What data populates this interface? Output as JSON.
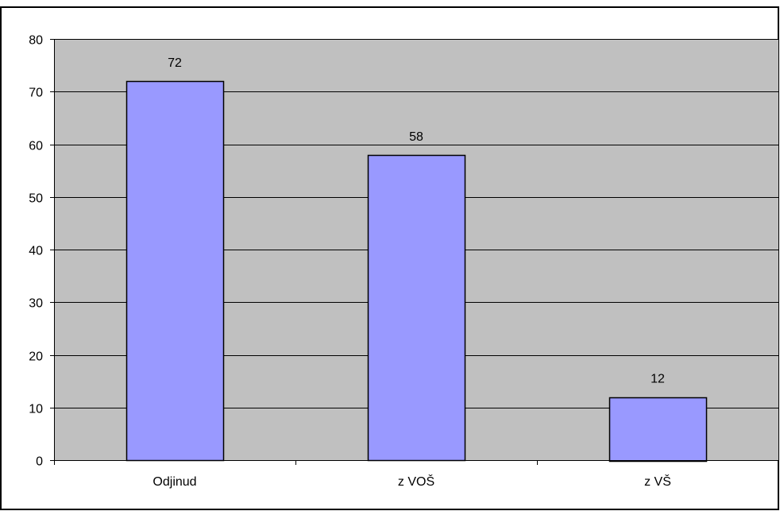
{
  "colors": {
    "plot_background": "#c0c0c0",
    "bar_fill": "#9999ff",
    "bar_stroke": "#000000",
    "gridline": "#000000",
    "frame": "#000000"
  },
  "chart_data": {
    "type": "bar",
    "categories": [
      "Odjinud",
      "z VOŠ",
      "z VŠ"
    ],
    "values": [
      72,
      58,
      12
    ],
    "data_labels": [
      "72",
      "58",
      "12"
    ],
    "title": "",
    "xlabel": "",
    "ylabel": "",
    "ylim": [
      0,
      80
    ],
    "yticks": [
      0,
      10,
      20,
      30,
      40,
      50,
      60,
      70,
      80
    ],
    "ytick_labels": [
      "0",
      "10",
      "20",
      "30",
      "40",
      "50",
      "60",
      "70",
      "80"
    ],
    "grid": true,
    "legend": "none"
  }
}
